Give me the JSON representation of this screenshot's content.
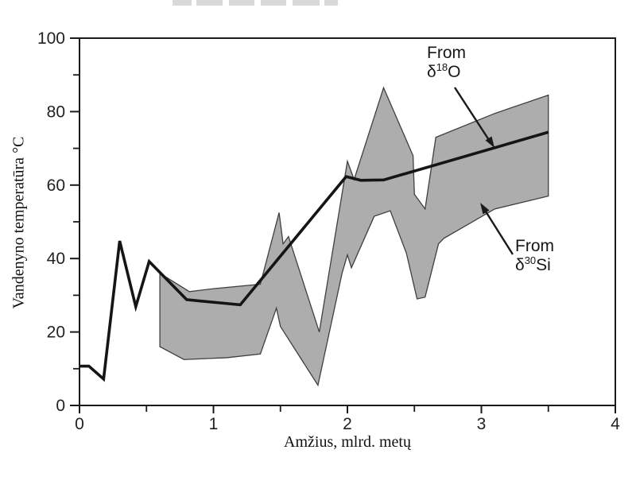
{
  "figure": {
    "y_axis_label": "Vandenyno temperatūra °C",
    "x_axis_label": "Amžius, mlrd. metų",
    "annotations": {
      "o18": {
        "from": "From",
        "delta": "δ",
        "sup": "18",
        "element": "O"
      },
      "si30": {
        "from": "From",
        "delta": "δ",
        "sup": "30",
        "element": "Si"
      }
    }
  },
  "colors": {
    "line": "#151515",
    "band_fill": "#adadad",
    "band_stroke": "#3f3f3f",
    "axis": "#1a1a1a",
    "tick_text": "#222222",
    "cropped_title_fragment": "#d9d9d9"
  },
  "chart_data": {
    "type": "line",
    "title": "",
    "xlabel": "Amžius, mlrd. metų",
    "ylabel": "Vandenyno temperatūra °C",
    "xlim": [
      0,
      4
    ],
    "ylim": [
      0,
      100
    ],
    "grid": false,
    "x_major_ticks": [
      0,
      1,
      2,
      3,
      4
    ],
    "x_minor_ticks": [
      0.5,
      1.5,
      2.5,
      3.5
    ],
    "y_major_ticks": [
      0,
      20,
      40,
      60,
      80,
      100
    ],
    "y_minor_ticks": [
      10,
      30,
      50,
      70,
      90
    ],
    "series": [
      {
        "name": "From δ18O",
        "kind": "line",
        "points": [
          [
            0.0,
            10.7
          ],
          [
            0.07,
            10.7
          ],
          [
            0.18,
            7.2
          ],
          [
            0.3,
            44.8
          ],
          [
            0.42,
            26.9
          ],
          [
            0.52,
            39.2
          ],
          [
            0.8,
            28.8
          ],
          [
            1.2,
            27.4
          ],
          [
            1.99,
            62.3
          ],
          [
            2.1,
            61.3
          ],
          [
            2.27,
            61.4
          ],
          [
            3.5,
            74.4
          ]
        ]
      },
      {
        "name": "From δ30Si",
        "kind": "band",
        "top": [
          [
            0.6,
            36.0
          ],
          [
            0.82,
            31.0
          ],
          [
            1.0,
            31.8
          ],
          [
            1.35,
            33.0
          ],
          [
            1.49,
            52.5
          ],
          [
            1.52,
            44.0
          ],
          [
            1.56,
            46.0
          ],
          [
            1.79,
            20.0
          ],
          [
            2.0,
            66.5
          ],
          [
            2.05,
            61.5
          ],
          [
            2.27,
            86.5
          ],
          [
            2.49,
            68.0
          ],
          [
            2.5,
            57.5
          ],
          [
            2.58,
            53.5
          ],
          [
            2.66,
            73.0
          ],
          [
            3.1,
            79.5
          ],
          [
            3.5,
            84.5
          ]
        ],
        "bottom": [
          [
            0.6,
            16.0
          ],
          [
            0.78,
            12.5
          ],
          [
            1.1,
            13.0
          ],
          [
            1.35,
            14.0
          ],
          [
            1.47,
            26.5
          ],
          [
            1.5,
            21.5
          ],
          [
            1.78,
            5.5
          ],
          [
            1.96,
            36.0
          ],
          [
            2.0,
            41.0
          ],
          [
            2.03,
            37.5
          ],
          [
            2.2,
            51.5
          ],
          [
            2.32,
            53.0
          ],
          [
            2.44,
            41.5
          ],
          [
            2.52,
            29.0
          ],
          [
            2.58,
            29.5
          ],
          [
            2.68,
            44.0
          ],
          [
            2.72,
            45.5
          ],
          [
            3.1,
            53.5
          ],
          [
            3.5,
            57.0
          ]
        ]
      }
    ]
  }
}
